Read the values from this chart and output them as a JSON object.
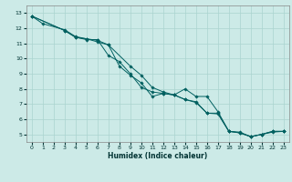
{
  "xlabel": "Humidex (Indice chaleur)",
  "bg_color": "#cceae7",
  "grid_color": "#aad4d0",
  "line_color": "#006060",
  "xlim": [
    -0.5,
    23.5
  ],
  "ylim": [
    4.5,
    13.5
  ],
  "xticks": [
    0,
    1,
    2,
    3,
    4,
    5,
    6,
    7,
    8,
    9,
    10,
    11,
    12,
    13,
    14,
    15,
    16,
    17,
    18,
    19,
    20,
    21,
    22,
    23
  ],
  "yticks": [
    5,
    6,
    7,
    8,
    9,
    10,
    11,
    12,
    13
  ],
  "line1_x": [
    0,
    1,
    3,
    4,
    5,
    6,
    7,
    9,
    10,
    11,
    12,
    13,
    14,
    15,
    16,
    17,
    18,
    19,
    20,
    21,
    22,
    23
  ],
  "line1_y": [
    12.8,
    12.3,
    11.9,
    11.45,
    11.3,
    11.2,
    10.9,
    9.5,
    8.9,
    8.1,
    7.8,
    7.6,
    7.3,
    7.15,
    6.4,
    6.4,
    5.2,
    5.15,
    4.85,
    5.0,
    5.2,
    5.2
  ],
  "line2_x": [
    0,
    3,
    4,
    5,
    6,
    7,
    8,
    9,
    10,
    11,
    12,
    13,
    14,
    15,
    16,
    17,
    18,
    19,
    20,
    21,
    22,
    23
  ],
  "line2_y": [
    12.8,
    11.85,
    11.4,
    11.25,
    11.25,
    10.2,
    9.8,
    9.0,
    8.1,
    7.8,
    7.7,
    7.6,
    8.0,
    7.5,
    7.5,
    6.5,
    5.2,
    5.1,
    4.85,
    5.0,
    5.15,
    5.2
  ],
  "line3_x": [
    0,
    3,
    4,
    5,
    6,
    7,
    8,
    9,
    10,
    11,
    12,
    13,
    14,
    15,
    16,
    17,
    18,
    19,
    20,
    21,
    22,
    23
  ],
  "line3_y": [
    12.8,
    11.85,
    11.4,
    11.3,
    11.1,
    10.9,
    9.5,
    8.9,
    8.4,
    7.5,
    7.7,
    7.6,
    7.3,
    7.1,
    6.4,
    6.35,
    5.2,
    5.1,
    4.85,
    5.0,
    5.2,
    5.2
  ]
}
